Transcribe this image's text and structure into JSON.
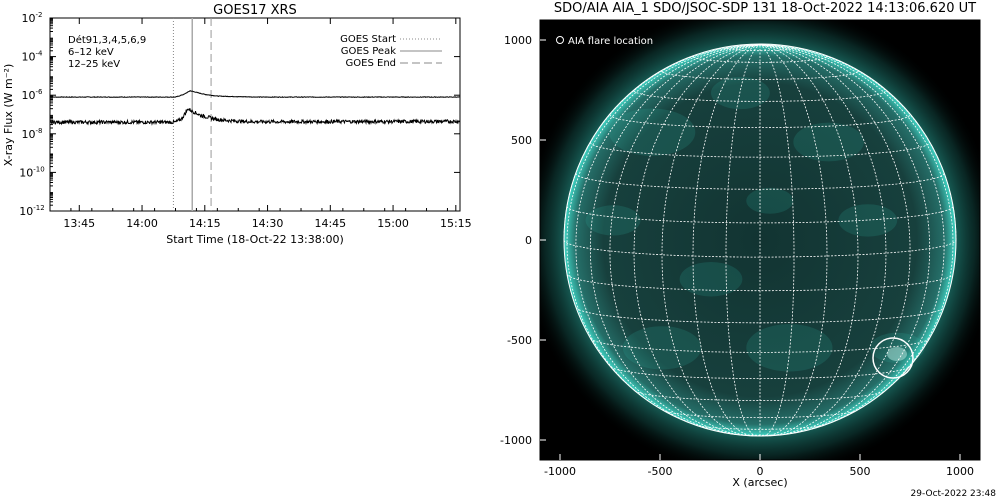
{
  "footer_timestamp": "29-Oct-2022 23:48",
  "colors": {
    "background": "#ffffff",
    "axis": "#000000",
    "high_channel": "#000000",
    "low_channel": "#000000",
    "legend_label_6_12": "#cc00cc",
    "legend_label_12_25": "#33cc33",
    "marker_start": "#888888",
    "marker_peak": "#aaaaaa",
    "marker_end": "#999999",
    "sun_glow": "#2fbfb0",
    "sun_disk_dark": "#0f2a29",
    "grid": "#ffffff",
    "flare_circle": "#ffffff",
    "image_bg": "#000000"
  },
  "chart_data": [
    {
      "type": "line",
      "title": "GOES17 XRS",
      "xlabel": "Start Time (18-Oct-22 13:38:00)",
      "ylabel": "X-ray Flux (W m⁻²)",
      "x_units": "minutes after 13:38:00",
      "xlim": [
        0,
        98
      ],
      "x_ticks": [
        {
          "x": 7,
          "label": "13:45"
        },
        {
          "x": 22,
          "label": "14:00"
        },
        {
          "x": 37,
          "label": "14:15"
        },
        {
          "x": 52,
          "label": "14:30"
        },
        {
          "x": 67,
          "label": "14:45"
        },
        {
          "x": 82,
          "label": "15:00"
        },
        {
          "x": 97,
          "label": "15:15"
        }
      ],
      "y_scale": "log",
      "ylim": [
        1e-12,
        0.01
      ],
      "y_ticks": [
        {
          "y": 0.01,
          "label": "10",
          "exp": "-2"
        },
        {
          "y": 0.0001,
          "label": "10",
          "exp": "-4"
        },
        {
          "y": 1e-06,
          "label": "10",
          "exp": "-6"
        },
        {
          "y": 1e-08,
          "label": "10",
          "exp": "-8"
        },
        {
          "y": 1e-10,
          "label": "10",
          "exp": "-10"
        },
        {
          "y": 1e-12,
          "label": "10",
          "exp": "-12"
        }
      ],
      "labels": [
        "Dét91,3,4,5,6,9",
        "6–12 keV",
        "12–25 keV"
      ],
      "series": [
        {
          "x": [
            0,
            10,
            20,
            30,
            32,
            33.5,
            35,
            37,
            40,
            44,
            50,
            60,
            75,
            90,
            98
          ],
          "y": [
            8e-07,
            8e-07,
            8e-07,
            8e-07,
            1.1e-06,
            1.7e-06,
            1.4e-06,
            1.1e-06,
            9e-07,
            8.5e-07,
            8e-07,
            8e-07,
            8e-07,
            8e-07,
            8e-07
          ]
        },
        {
          "x": [
            0,
            10,
            20,
            30,
            31.5,
            33,
            34,
            36,
            38,
            40,
            43,
            47,
            55,
            70,
            85,
            98
          ],
          "y": [
            4e-08,
            4e-08,
            4e-08,
            4e-08,
            6e-08,
            2e-07,
            1.5e-07,
            9e-08,
            7e-08,
            5.5e-08,
            4.8e-08,
            4.3e-08,
            4.2e-08,
            4.3e-08,
            4.3e-08,
            4.4e-08
          ]
        }
      ],
      "markers": [
        {
          "name": "GOES Start",
          "x": 29.5,
          "style": "dotted"
        },
        {
          "name": "GOES Peak",
          "x": 34,
          "style": "solid"
        },
        {
          "name": "GOES End",
          "x": 38.5,
          "style": "dashed"
        }
      ],
      "legend_position": "top-right"
    },
    {
      "type": "scatter",
      "title": "SDO/AIA AIA_1 SDO/JSOC-SDP 131 18-Oct-2022 14:13:06.620 UT",
      "xlabel": "X (arcsec)",
      "ylabel": "",
      "xlim": [
        -1100,
        1100
      ],
      "ylim": [
        -1100,
        1100
      ],
      "x_ticks": [
        -1000,
        -500,
        0,
        500,
        1000
      ],
      "y_ticks": [
        -1000,
        -500,
        0,
        500,
        1000
      ],
      "solar_radius_arcsec": 980,
      "grid": "heliographic lat/lon",
      "legend": [
        "AIA flare location"
      ],
      "legend_position": "top-left",
      "flare_location": {
        "x": 665,
        "y": -590,
        "radius": 100
      }
    }
  ]
}
